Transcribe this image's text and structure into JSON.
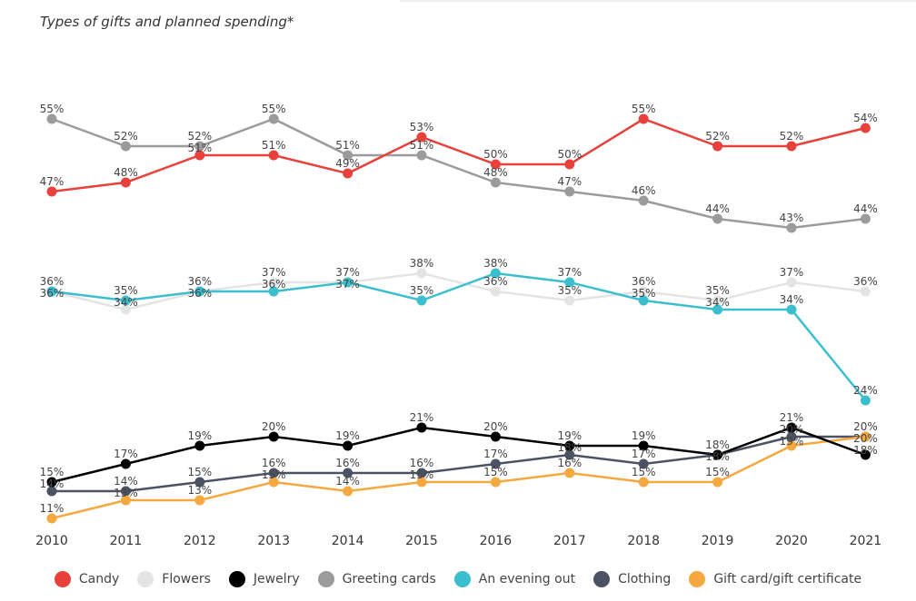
{
  "chart_data": {
    "type": "line",
    "title": "Types of gifts and planned spending*",
    "x": [
      "2010",
      "2011",
      "2012",
      "2013",
      "2014",
      "2015",
      "2016",
      "2017",
      "2018",
      "2019",
      "2020",
      "2021"
    ],
    "ylim": [
      0,
      60
    ],
    "unit": "%",
    "legend_position": "bottom",
    "series": [
      {
        "name": "Candy",
        "color": "#e8403b",
        "values": [
          47,
          48,
          51,
          51,
          49,
          53,
          50,
          50,
          55,
          52,
          52,
          54
        ]
      },
      {
        "name": "Flowers",
        "color": "#e4e4e4",
        "values": [
          36,
          34,
          36,
          37,
          37,
          38,
          36,
          35,
          36,
          35,
          37,
          36
        ]
      },
      {
        "name": "Jewelry",
        "color": "#000000",
        "values": [
          15,
          17,
          19,
          20,
          19,
          21,
          20,
          19,
          19,
          18,
          21,
          18
        ]
      },
      {
        "name": "Greeting cards",
        "color": "#9b9b9b",
        "values": [
          55,
          52,
          52,
          55,
          51,
          51,
          48,
          47,
          46,
          44,
          43,
          44
        ]
      },
      {
        "name": "An evening out",
        "color": "#3bbfcf",
        "values": [
          36,
          35,
          36,
          36,
          37,
          35,
          38,
          37,
          35,
          34,
          34,
          24
        ]
      },
      {
        "name": "Clothing",
        "color": "#4a5263",
        "values": [
          14,
          14,
          15,
          16,
          16,
          16,
          17,
          18,
          17,
          18,
          20,
          20
        ]
      },
      {
        "name": "Gift card/gift certificate",
        "color": "#f5a840",
        "values": [
          11,
          13,
          13,
          15,
          14,
          15,
          15,
          16,
          15,
          15,
          19,
          20
        ]
      }
    ]
  }
}
